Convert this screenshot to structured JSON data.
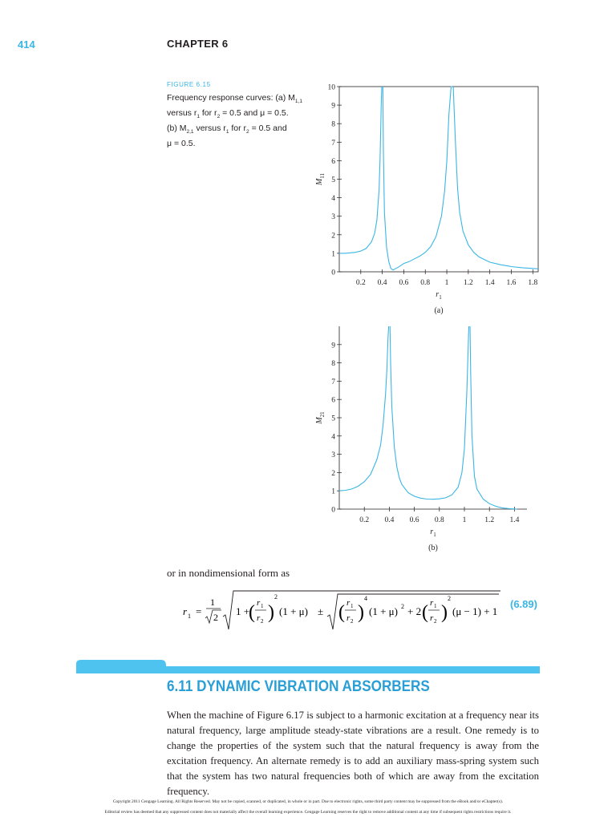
{
  "page": {
    "number": "414",
    "chapter": "CHAPTER 6"
  },
  "figure": {
    "label": "FIGURE 6.15",
    "caption": {
      "line1_a": "Frequency response curves: (a) M",
      "line1_sub": "1,1",
      "line2_a": "versus r",
      "line2_sub1": "1",
      "line2_b": " for r",
      "line2_sub2": "2",
      "line2_c": " = 0.5 and μ = 0.5.",
      "line3_a": "(b) M",
      "line3_sub1": "2,1",
      "line3_b": " versus r",
      "line3_sub2": "1",
      "line3_c": " for r",
      "line3_sub3": "2",
      "line3_d": " = 0.5 and",
      "line4": "μ = 0.5."
    }
  },
  "chart_data": [
    {
      "type": "line",
      "panel_label": "(a)",
      "xlabel": "r1",
      "ylabel": "M11",
      "xlim": [
        0,
        1.85
      ],
      "ylim": [
        0,
        10
      ],
      "xticks": [
        0.2,
        0.4,
        0.6,
        0.8,
        1,
        1.2,
        1.4,
        1.6,
        1.8
      ],
      "xtick_labels": [
        "0.2",
        "0.4",
        "0.6",
        "0.8",
        "1",
        "1.2",
        "1.4",
        "1.6",
        "1.8"
      ],
      "yticks": [
        0,
        1,
        2,
        3,
        4,
        5,
        6,
        7,
        8,
        9,
        10
      ],
      "ytick_labels": [
        "0",
        "1",
        "2",
        "3",
        "4",
        "5",
        "6",
        "7",
        "8",
        "9",
        "10"
      ],
      "box": true,
      "series": [
        {
          "x": [
            0,
            0.05,
            0.1,
            0.15,
            0.2,
            0.25,
            0.3,
            0.33,
            0.35,
            0.37,
            0.38,
            0.39,
            0.395
          ],
          "y": [
            1.0,
            1.0,
            1.02,
            1.05,
            1.12,
            1.26,
            1.62,
            2.1,
            2.8,
            4.4,
            6.2,
            9.0,
            10
          ]
        },
        {
          "x": [
            0.405,
            0.41,
            0.42,
            0.44,
            0.46,
            0.48,
            0.5,
            0.55,
            0.6,
            0.65,
            0.7,
            0.75,
            0.8,
            0.85,
            0.9,
            0.95,
            0.98,
            1.0,
            1.02,
            1.04,
            1.05
          ],
          "y": [
            10,
            6.5,
            3.2,
            1.3,
            0.55,
            0.18,
            0.1,
            0.25,
            0.45,
            0.55,
            0.7,
            0.85,
            1.05,
            1.35,
            1.9,
            3.0,
            4.4,
            6.0,
            8.5,
            10,
            10
          ]
        },
        {
          "x": [
            1.06,
            1.08,
            1.1,
            1.12,
            1.15,
            1.2,
            1.25,
            1.3,
            1.4,
            1.5,
            1.6,
            1.7,
            1.85
          ],
          "y": [
            10,
            7.0,
            4.5,
            3.2,
            2.2,
            1.45,
            1.05,
            0.8,
            0.52,
            0.38,
            0.28,
            0.22,
            0.16
          ]
        }
      ]
    },
    {
      "type": "line",
      "panel_label": "(b)",
      "xlabel": "r1",
      "ylabel": "M21",
      "xlim": [
        0,
        1.5
      ],
      "ylim": [
        0,
        10
      ],
      "xticks": [
        0.2,
        0.4,
        0.6,
        0.8,
        1,
        1.2,
        1.4
      ],
      "xtick_labels": [
        "0.2",
        "0.4",
        "0.6",
        "0.8",
        "1",
        "1.2",
        "1.4"
      ],
      "yticks": [
        0,
        1,
        2,
        3,
        4,
        5,
        6,
        7,
        8,
        9
      ],
      "ytick_labels": [
        "0",
        "1",
        "2",
        "3",
        "4",
        "5",
        "6",
        "7",
        "8",
        "9"
      ],
      "box": false,
      "series": [
        {
          "x": [
            0,
            0.05,
            0.1,
            0.15,
            0.2,
            0.25,
            0.3,
            0.33,
            0.35,
            0.37,
            0.38,
            0.39,
            0.395
          ],
          "y": [
            1.0,
            1.03,
            1.1,
            1.25,
            1.5,
            1.9,
            2.7,
            3.5,
            4.6,
            6.3,
            7.6,
            9.4,
            10
          ]
        },
        {
          "x": [
            0.405,
            0.41,
            0.42,
            0.44,
            0.46,
            0.48,
            0.5,
            0.55,
            0.6,
            0.65,
            0.7,
            0.75,
            0.8,
            0.85,
            0.9,
            0.95,
            0.98,
            1.0,
            1.02,
            1.035
          ],
          "y": [
            10,
            8.0,
            5.6,
            3.4,
            2.3,
            1.7,
            1.35,
            0.9,
            0.7,
            0.6,
            0.55,
            0.54,
            0.56,
            0.62,
            0.78,
            1.2,
            2.0,
            3.3,
            6.5,
            10
          ]
        },
        {
          "x": [
            1.045,
            1.05,
            1.06,
            1.08,
            1.1,
            1.15,
            1.2,
            1.25,
            1.3,
            1.35,
            1.4,
            1.42
          ],
          "y": [
            10,
            7.5,
            4.0,
            1.8,
            1.1,
            0.55,
            0.3,
            0.16,
            0.07,
            0.03,
            0.01,
            0.0
          ]
        }
      ]
    }
  ],
  "equation": {
    "intro": "or in nondimensional form as",
    "lhs": "r",
    "lhs_sub": "1",
    "equals": "=",
    "one": "1",
    "sqrt2": "2",
    "term1": "1 +",
    "frac_num": "r",
    "frac_num_sub": "1",
    "frac_den": "r",
    "frac_den_sub": "2",
    "exp2": "2",
    "exp4": "4",
    "mu_term": "(1 + μ)",
    "pm": "±",
    "mu_sq": "(1 + μ)",
    "mu_sq_exp": "2",
    "plus2": "+ 2",
    "mu_minus": "(μ − 1) + 1",
    "number": "(6.89)"
  },
  "section": {
    "title": "6.11 DYNAMIC VIBRATION ABSORBERS",
    "body": "When the machine of Figure 6.17 is subject to a harmonic excitation at a frequency near its natural frequency, large amplitude steady-state vibrations are a result. One remedy is to change the properties of the system such that the natural frequency is away from the excitation frequency. An alternate remedy is to add an auxiliary mass-spring system such that the system has two natural frequencies both of which are away from the excitation frequency."
  },
  "footer": {
    "line1": "Copyright 2011 Cengage Learning. All Rights Reserved. May not be copied, scanned, or duplicated, in whole or in part. Due to electronic rights, some third party content may be suppressed from the eBook and/or eChapter(s).",
    "line2": "Editorial review has deemed that any suppressed content does not materially affect the overall learning experience. Cengage Learning reserves the right to remove additional content at any time if subsequent rights restrictions require it."
  },
  "colors": {
    "accent": "#3ab6e4",
    "curve": "#3ab6e4",
    "heading": "#2a9fd6",
    "text": "#231f20"
  }
}
